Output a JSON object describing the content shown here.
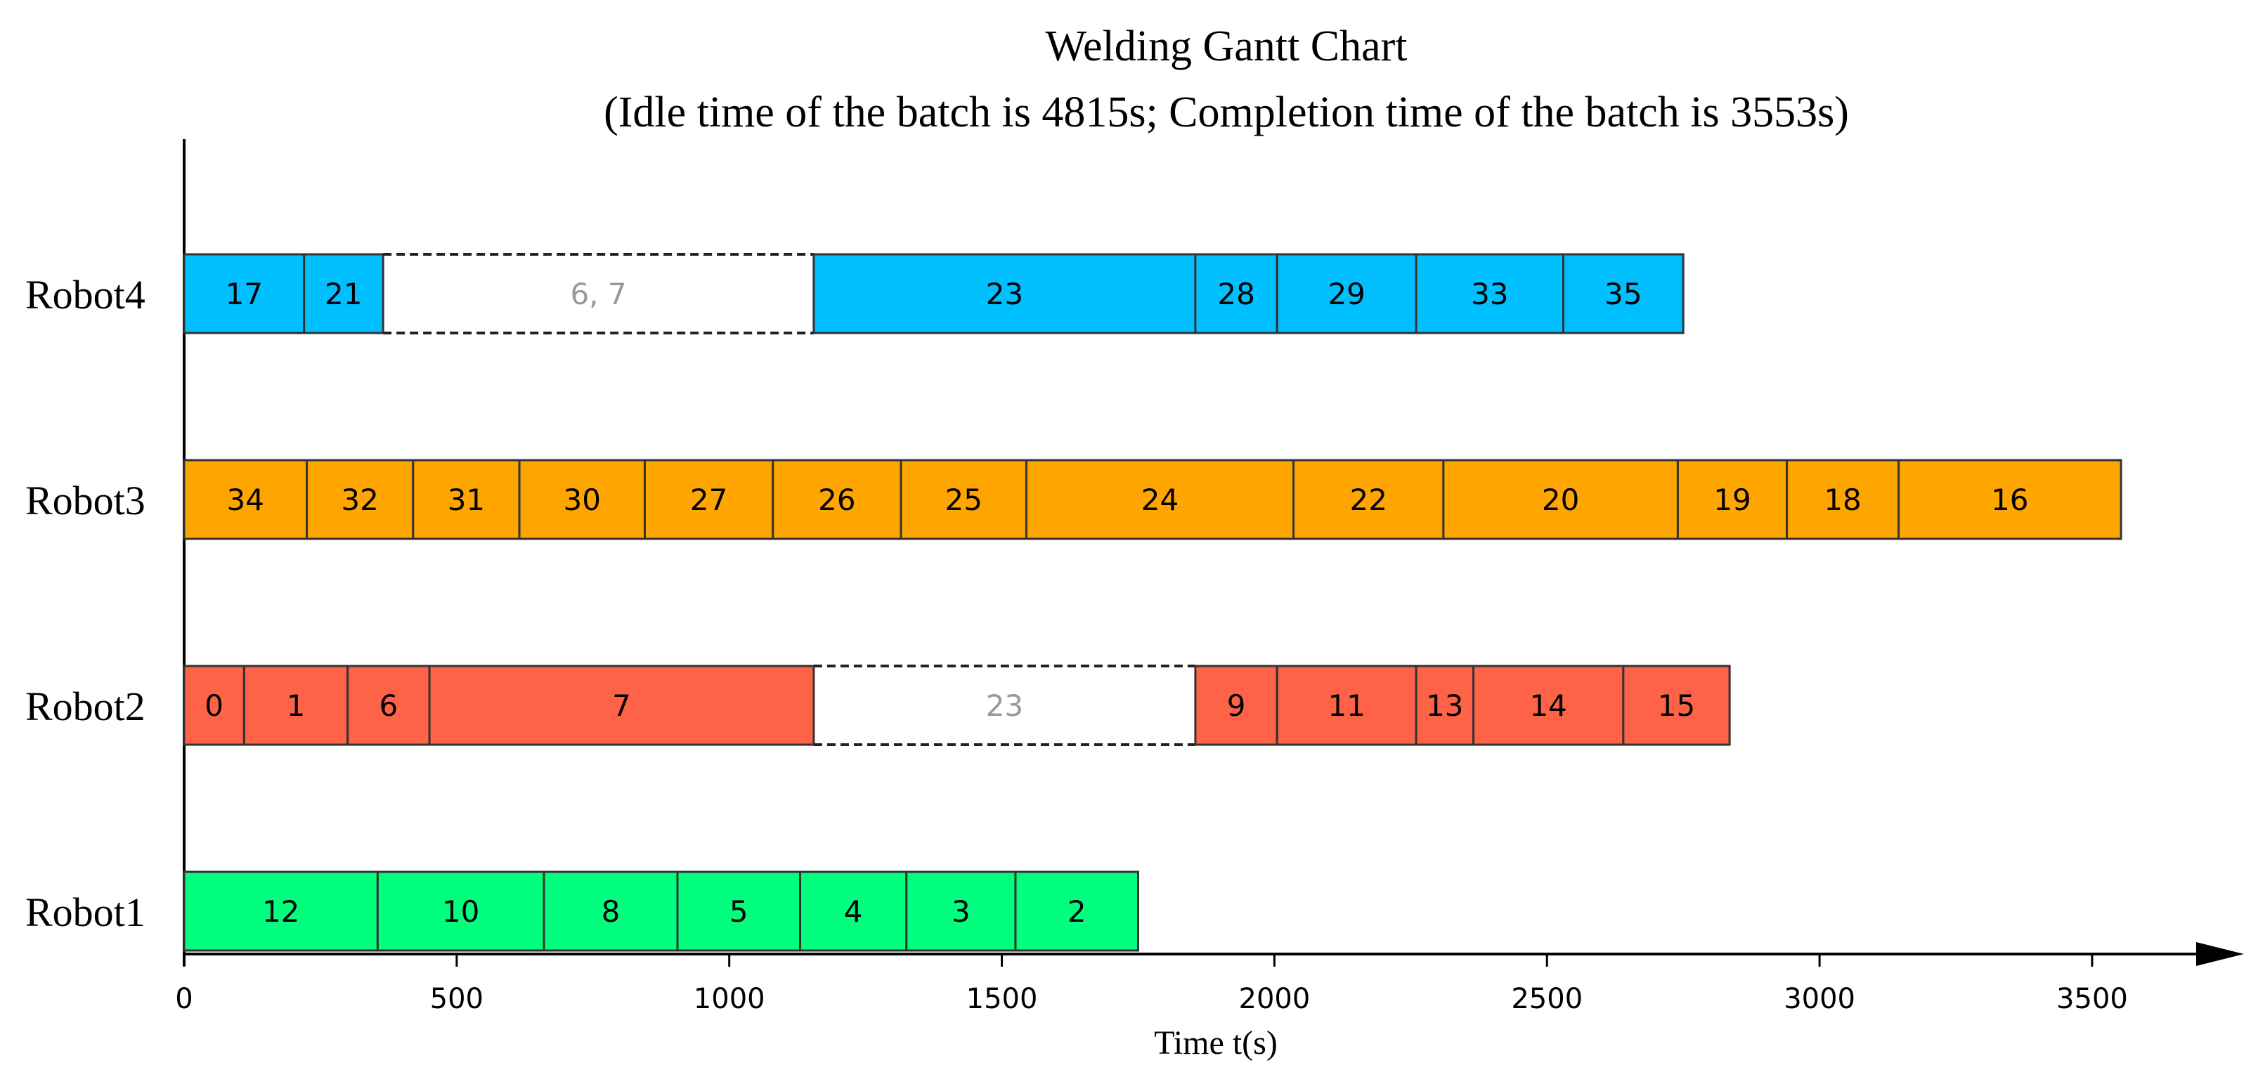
{
  "chart_data": {
    "type": "gantt",
    "title": "Welding Gantt Chart",
    "subtitle": "(Idle time of the batch is 4815s; Completion time of the batch is 3553s)",
    "xlabel": "Time t(s)",
    "xlim": [
      0,
      3800
    ],
    "xticks": [
      0,
      500,
      1000,
      1500,
      2000,
      2500,
      3000,
      3500
    ],
    "xtick_labels": [
      "0",
      "500",
      "1000",
      "1500",
      "2000",
      "2500",
      "3000",
      "3500"
    ],
    "grid": false,
    "colors": {
      "Robot1": "#00FF7F",
      "Robot2": "#FF6347",
      "Robot3": "#FFA500",
      "Robot4": "#00BFFF",
      "idle_text": "#999999",
      "bar_border": "#333333"
    },
    "rows": [
      {
        "name": "Robot4",
        "tasks": [
          {
            "label": "17",
            "start": 0,
            "end": 220,
            "type": "work"
          },
          {
            "label": "21",
            "start": 220,
            "end": 365,
            "type": "work"
          },
          {
            "label": "6, 7",
            "start": 365,
            "end": 1155,
            "type": "idle"
          },
          {
            "label": "23",
            "start": 1155,
            "end": 1855,
            "type": "work"
          },
          {
            "label": "28",
            "start": 1855,
            "end": 2005,
            "type": "work"
          },
          {
            "label": "29",
            "start": 2005,
            "end": 2260,
            "type": "work"
          },
          {
            "label": "33",
            "start": 2260,
            "end": 2530,
            "type": "work"
          },
          {
            "label": "35",
            "start": 2530,
            "end": 2750,
            "type": "work"
          }
        ]
      },
      {
        "name": "Robot3",
        "tasks": [
          {
            "label": "34",
            "start": 0,
            "end": 225,
            "type": "work"
          },
          {
            "label": "32",
            "start": 225,
            "end": 420,
            "type": "work"
          },
          {
            "label": "31",
            "start": 420,
            "end": 615,
            "type": "work"
          },
          {
            "label": "30",
            "start": 615,
            "end": 845,
            "type": "work"
          },
          {
            "label": "27",
            "start": 845,
            "end": 1080,
            "type": "work"
          },
          {
            "label": "26",
            "start": 1080,
            "end": 1315,
            "type": "work"
          },
          {
            "label": "25",
            "start": 1315,
            "end": 1545,
            "type": "work"
          },
          {
            "label": "24",
            "start": 1545,
            "end": 2035,
            "type": "work"
          },
          {
            "label": "22",
            "start": 2035,
            "end": 2310,
            "type": "work"
          },
          {
            "label": "20",
            "start": 2310,
            "end": 2740,
            "type": "work"
          },
          {
            "label": "19",
            "start": 2740,
            "end": 2940,
            "type": "work"
          },
          {
            "label": "18",
            "start": 2940,
            "end": 3145,
            "type": "work"
          },
          {
            "label": "16",
            "start": 3145,
            "end": 3553,
            "type": "work"
          }
        ]
      },
      {
        "name": "Robot2",
        "tasks": [
          {
            "label": "0",
            "start": 0,
            "end": 110,
            "type": "work"
          },
          {
            "label": "1",
            "start": 110,
            "end": 300,
            "type": "work"
          },
          {
            "label": "6",
            "start": 300,
            "end": 450,
            "type": "work"
          },
          {
            "label": "7",
            "start": 450,
            "end": 1155,
            "type": "work"
          },
          {
            "label": "23",
            "start": 1155,
            "end": 1855,
            "type": "idle"
          },
          {
            "label": "9",
            "start": 1855,
            "end": 2005,
            "type": "work"
          },
          {
            "label": "11",
            "start": 2005,
            "end": 2260,
            "type": "work"
          },
          {
            "label": "13",
            "start": 2260,
            "end": 2365,
            "type": "work"
          },
          {
            "label": "14",
            "start": 2365,
            "end": 2640,
            "type": "work"
          },
          {
            "label": "15",
            "start": 2640,
            "end": 2835,
            "type": "work"
          }
        ]
      },
      {
        "name": "Robot1",
        "tasks": [
          {
            "label": "12",
            "start": 0,
            "end": 355,
            "type": "work"
          },
          {
            "label": "10",
            "start": 355,
            "end": 660,
            "type": "work"
          },
          {
            "label": "8",
            "start": 660,
            "end": 905,
            "type": "work"
          },
          {
            "label": "5",
            "start": 905,
            "end": 1130,
            "type": "work"
          },
          {
            "label": "4",
            "start": 1130,
            "end": 1325,
            "type": "work"
          },
          {
            "label": "3",
            "start": 1325,
            "end": 1525,
            "type": "work"
          },
          {
            "label": "2",
            "start": 1525,
            "end": 1750,
            "type": "work"
          }
        ]
      }
    ]
  }
}
